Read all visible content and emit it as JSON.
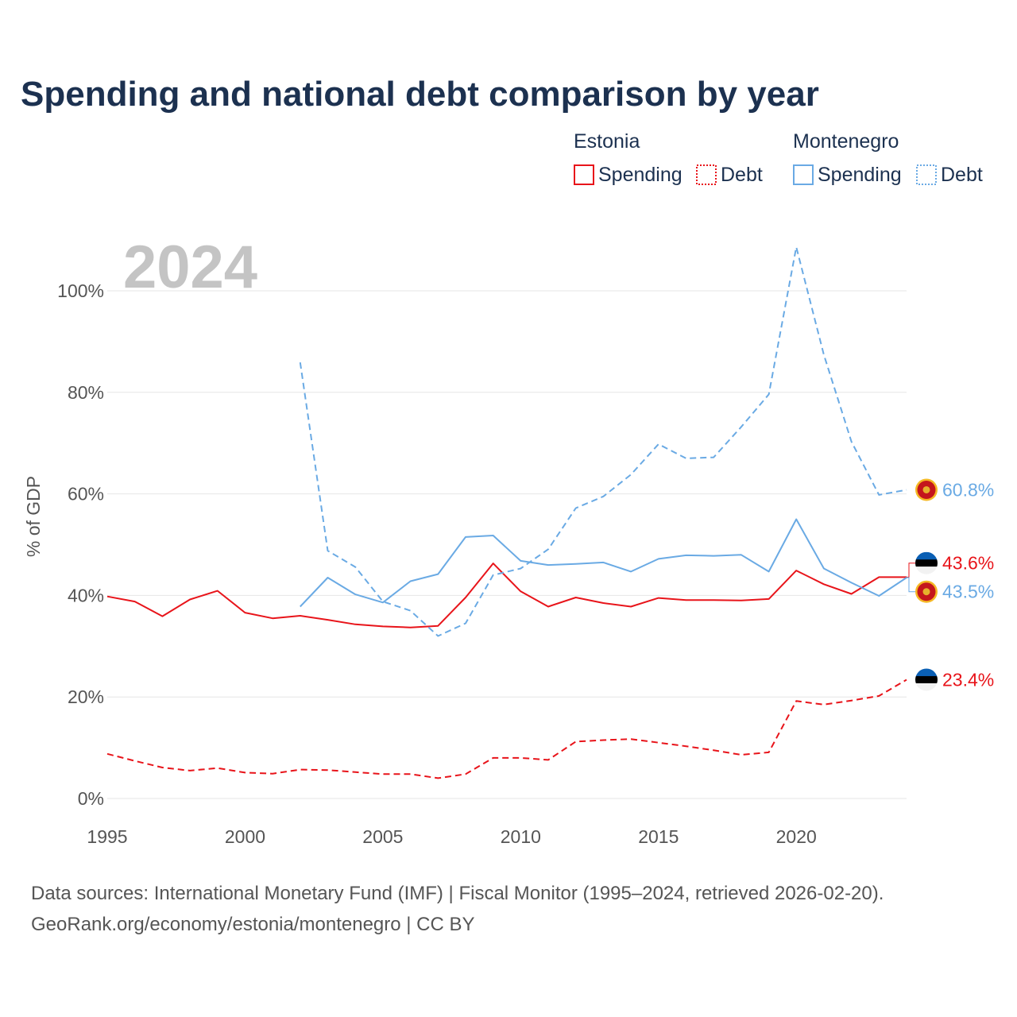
{
  "title": "Spending and national debt comparison by year",
  "year_watermark": "2024",
  "legend": {
    "groups": [
      {
        "country": "Estonia",
        "items": [
          "Spending",
          "Debt"
        ]
      },
      {
        "country": "Montenegro",
        "items": [
          "Spending",
          "Debt"
        ]
      }
    ]
  },
  "source_line1": "Data sources: International Monetary Fund (IMF) | Fiscal Monitor (1995–2024, retrieved 2026-02-20).",
  "source_line2": "GeoRank.org/economy/estonia/montenegro | CC BY",
  "colors": {
    "estonia": "#e8141a",
    "montenegro": "#6aaae4",
    "grid": "#e6e6e6",
    "title": "#1c3150"
  },
  "chart_data": {
    "type": "line",
    "ylabel": "% of GDP",
    "xlim": [
      1995,
      2024
    ],
    "ylim": [
      0,
      100
    ],
    "xticks": [
      1995,
      2000,
      2005,
      2010,
      2015,
      2020
    ],
    "xtick_labels": [
      "1995",
      "2000",
      "2005",
      "2010",
      "2015",
      "2020"
    ],
    "yticks": [
      0,
      20,
      40,
      60,
      80,
      100
    ],
    "ytick_labels": [
      "0%",
      "20%",
      "40%",
      "60%",
      "80%",
      "100%"
    ],
    "series": [
      {
        "name": "Estonia Spending",
        "country": "estonia",
        "style": "solid",
        "x": [
          1995,
          1996,
          1997,
          1998,
          1999,
          2000,
          2001,
          2002,
          2003,
          2004,
          2005,
          2006,
          2007,
          2008,
          2009,
          2010,
          2011,
          2012,
          2013,
          2014,
          2015,
          2016,
          2017,
          2018,
          2019,
          2020,
          2021,
          2022,
          2023,
          2024
        ],
        "values": [
          39.8,
          38.8,
          35.9,
          39.2,
          40.9,
          36.6,
          35.5,
          36.0,
          35.2,
          34.3,
          33.9,
          33.7,
          34.0,
          39.6,
          46.3,
          40.8,
          37.8,
          39.6,
          38.5,
          37.8,
          39.5,
          39.1,
          39.1,
          39.0,
          39.3,
          44.9,
          42.2,
          40.3,
          43.6,
          43.6
        ],
        "end_label": "43.6%"
      },
      {
        "name": "Estonia Debt",
        "country": "estonia",
        "style": "dashed",
        "x": [
          1995,
          1996,
          1997,
          1998,
          1999,
          2000,
          2001,
          2002,
          2003,
          2004,
          2005,
          2006,
          2007,
          2008,
          2009,
          2010,
          2011,
          2012,
          2013,
          2014,
          2015,
          2016,
          2017,
          2018,
          2019,
          2020,
          2021,
          2022,
          2023,
          2024
        ],
        "values": [
          8.8,
          7.4,
          6.1,
          5.5,
          6.0,
          5.1,
          4.9,
          5.7,
          5.6,
          5.2,
          4.8,
          4.8,
          4.0,
          4.8,
          8.0,
          8.0,
          7.6,
          11.2,
          11.5,
          11.7,
          11.0,
          10.3,
          9.5,
          8.6,
          9.1,
          19.2,
          18.5,
          19.3,
          20.2,
          23.4
        ],
        "end_label": "23.4%"
      },
      {
        "name": "Montenegro Spending",
        "country": "montenegro",
        "style": "solid",
        "x": [
          2002,
          2003,
          2004,
          2005,
          2006,
          2007,
          2008,
          2009,
          2010,
          2011,
          2012,
          2013,
          2014,
          2015,
          2016,
          2017,
          2018,
          2019,
          2020,
          2021,
          2022,
          2023,
          2024
        ],
        "values": [
          37.8,
          43.5,
          40.2,
          38.6,
          42.8,
          44.2,
          51.5,
          51.8,
          46.8,
          46.0,
          46.2,
          46.5,
          44.7,
          47.2,
          47.9,
          47.8,
          48.0,
          44.7,
          55.0,
          45.3,
          42.5,
          39.9,
          43.5
        ],
        "end_label": "43.5%"
      },
      {
        "name": "Montenegro Debt",
        "country": "montenegro",
        "style": "dashed",
        "x": [
          2002,
          2003,
          2004,
          2005,
          2006,
          2007,
          2008,
          2009,
          2010,
          2011,
          2012,
          2013,
          2014,
          2015,
          2016,
          2017,
          2018,
          2019,
          2020,
          2021,
          2022,
          2023,
          2024
        ],
        "values": [
          85.9,
          48.8,
          45.6,
          38.8,
          37.0,
          32.0,
          34.5,
          44.0,
          45.3,
          49.1,
          57.2,
          59.5,
          63.8,
          69.8,
          67.0,
          67.2,
          73.2,
          79.6,
          108.6,
          87.4,
          70.3,
          59.8,
          60.8
        ],
        "end_label": "60.8%"
      }
    ]
  }
}
